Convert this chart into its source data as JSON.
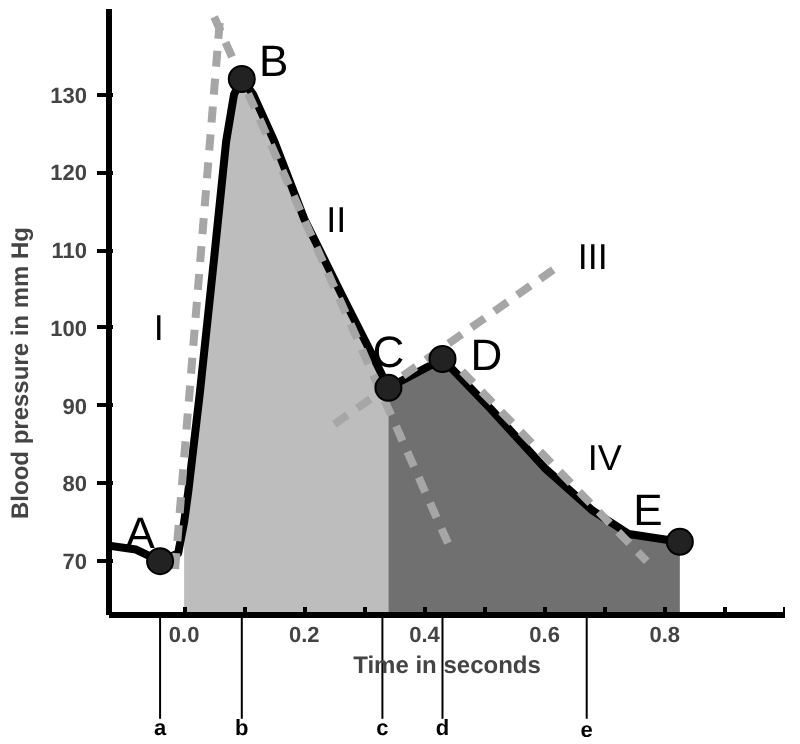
{
  "chart_data": {
    "type": "line",
    "xlabel": "Time in seconds",
    "ylabel": "Blood pressure in mm Hg",
    "xlim": [
      -0.125,
      1.0
    ],
    "ylim": [
      63,
      141
    ],
    "xticks": [
      {
        "value": 0,
        "label": "0.0"
      },
      {
        "value": 0.1,
        "label": null
      },
      0.2,
      {
        "value": 0.3,
        "label": null
      },
      0.4,
      {
        "value": 0.5,
        "label": null
      },
      0.6,
      {
        "value": 0.7,
        "label": null
      },
      0.8,
      {
        "value": 0.9,
        "label": null
      },
      {
        "value": 1.0,
        "label": null
      }
    ],
    "yticks": [
      70,
      80,
      90,
      100,
      110,
      120,
      130
    ],
    "grid": false,
    "series": [
      {
        "type": "area",
        "color": "#bdbdbd",
        "x": [
          0.0,
          0.007,
          0.026,
          0.05,
          0.07,
          0.083,
          0.096,
          0.115,
          0.15,
          0.2,
          0.264,
          0.31,
          0.34
        ],
        "values": [
          75,
          79,
          91.5,
          109,
          124,
          130,
          132,
          130,
          124,
          114,
          104,
          97,
          92.3
        ]
      },
      {
        "type": "area",
        "color": "#707070",
        "x": [
          0.34,
          0.43,
          0.51,
          0.6,
          0.68,
          0.74,
          0.825
        ],
        "values": [
          92.3,
          96,
          89.6,
          82,
          76.5,
          73.5,
          72.5
        ]
      },
      {
        "color": "#000000",
        "line_style": "solid",
        "x": [
          -0.125,
          -0.08,
          -0.04,
          -0.01,
          0.0,
          0.007,
          0.026,
          0.05,
          0.07,
          0.083,
          0.096,
          0.115,
          0.15,
          0.2,
          0.264,
          0.31,
          0.34,
          0.43,
          0.51,
          0.6,
          0.68,
          0.74,
          0.825
        ],
        "values": [
          72,
          71.5,
          70,
          71,
          75,
          79,
          91.5,
          109,
          124,
          130,
          132,
          130,
          124,
          114,
          104,
          97,
          92.3,
          96,
          89.6,
          82,
          76.5,
          73.5,
          72.5
        ]
      },
      {
        "type": "line",
        "color": "#a6a6a6",
        "line_style": "dashed",
        "x": [
          -0.015,
          0.06
        ],
        "values": [
          69,
          140
        ]
      },
      {
        "type": "line",
        "color": "#a6a6a6",
        "line_style": "dashed",
        "x": [
          0.05,
          0.445
        ],
        "values": [
          140,
          71.3
        ]
      },
      {
        "type": "line",
        "color": "#a6a6a6",
        "line_style": "dashed",
        "x": [
          0.25,
          0.62
        ],
        "values": [
          87.6,
          107.8
        ]
      },
      {
        "type": "line",
        "color": "#a6a6a6",
        "line_style": "dashed",
        "x": [
          0.43,
          0.77
        ],
        "values": [
          97,
          70
        ]
      },
      {
        "type": "scatter",
        "color": "#222222",
        "marker": "circle",
        "x": [
          -0.04,
          0.096,
          0.34,
          0.43,
          0.825
        ],
        "values": [
          70,
          132,
          92.3,
          96,
          72.5
        ]
      }
    ],
    "annotations": [
      {
        "text": "A",
        "x": -0.04,
        "y": 70
      },
      {
        "text": "B",
        "x": 0.096,
        "y": 132
      },
      {
        "text": "C",
        "x": 0.34,
        "y": 92.3
      },
      {
        "text": "D",
        "x": 0.43,
        "y": 96
      },
      {
        "text": "E",
        "x": 0.825,
        "y": 72.5
      },
      {
        "text": "I",
        "x": 0.0177,
        "y": 100
      },
      {
        "text": "II",
        "x": 0.2,
        "y": 113.9
      },
      {
        "text": "III",
        "x": 0.62,
        "y": 107.8
      },
      {
        "text": "IV",
        "x": 0.66,
        "y": 78.7
      }
    ],
    "ref_lines": [
      {
        "axis": "x",
        "value": -0.04,
        "label": "a"
      },
      {
        "axis": "x",
        "value": 0.096,
        "label": "b"
      },
      {
        "axis": "x",
        "value": 0.33,
        "label": "c"
      },
      {
        "axis": "x",
        "value": 0.43,
        "label": "d"
      },
      {
        "axis": "x",
        "value": 0.67,
        "label": "e"
      }
    ]
  }
}
